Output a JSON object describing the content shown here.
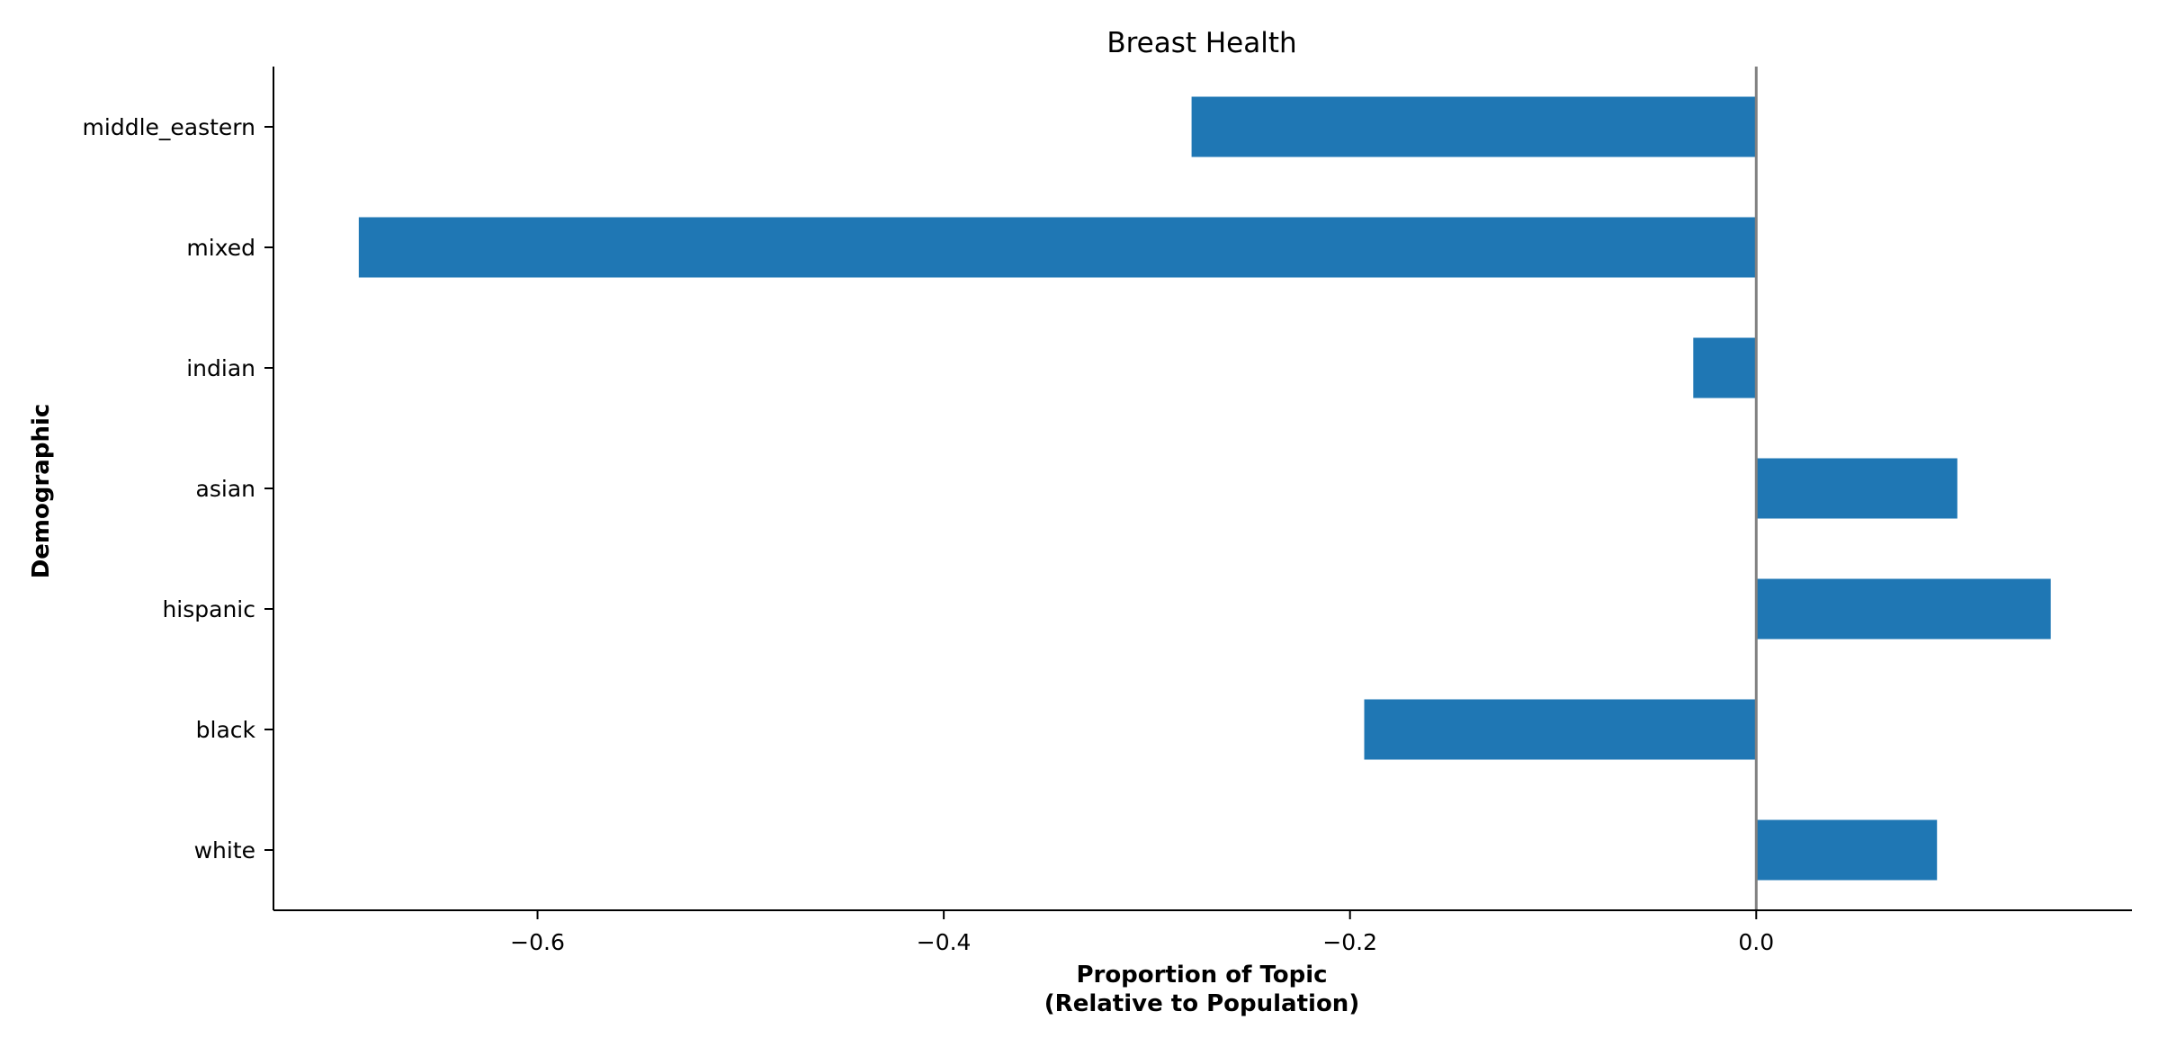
{
  "chart_data": {
    "type": "bar",
    "orientation": "horizontal",
    "title": "Breast Health",
    "xlabel_line1": "Proportion of Topic",
    "xlabel_line2": "(Relative to Population)",
    "ylabel": "Demographic",
    "categories": [
      "white",
      "black",
      "hispanic",
      "asian",
      "indian",
      "mixed",
      "middle_eastern"
    ],
    "values": [
      0.089,
      -0.193,
      0.145,
      0.099,
      -0.031,
      -0.688,
      -0.278
    ],
    "xlim": [
      -0.73,
      0.185
    ],
    "xticks": [
      -0.6,
      -0.4,
      -0.2,
      0.0
    ],
    "xtick_labels": [
      "−0.6",
      "−0.4",
      "−0.2",
      "0.0"
    ],
    "grid": false,
    "legend": "none",
    "zero_line": true,
    "colors": {
      "bar": "#1f77b4",
      "zero_line": "#808080",
      "axis": "#000000"
    }
  }
}
